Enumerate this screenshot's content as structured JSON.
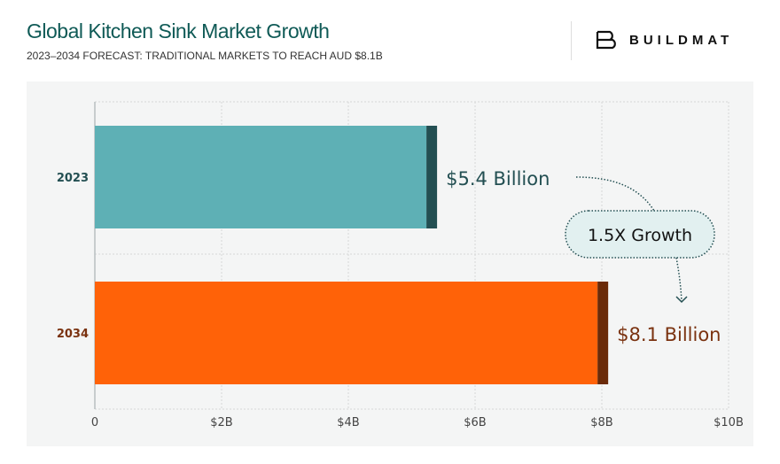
{
  "header": {
    "title": "Global Kitchen Sink Market Growth",
    "subtitle": "2023–2034 FORECAST: TRADITIONAL MARKETS TO REACH AUD $8.1B"
  },
  "logo": {
    "text": "BUILDMAT"
  },
  "chart_data": {
    "type": "bar",
    "orientation": "horizontal",
    "categories": [
      "2023",
      "2034"
    ],
    "values": [
      5.4,
      8.1
    ],
    "data_labels": [
      "$5.4 Billion",
      "$8.1 Billion"
    ],
    "colors": [
      "#5eb0b5",
      "#ff6208"
    ],
    "accent_colors": [
      "#234f52",
      "#6a2a08"
    ],
    "label_colors": [
      "#234f52",
      "#7a3210"
    ],
    "xlim": [
      0,
      10
    ],
    "xticks": [
      0,
      2,
      4,
      6,
      8,
      10
    ],
    "xtick_labels": [
      "0",
      "$2B",
      "$4B",
      "$6B",
      "$8B",
      "$10B"
    ],
    "grid": true,
    "annotation": "1.5X Growth",
    "background": "#f4f5f5"
  }
}
